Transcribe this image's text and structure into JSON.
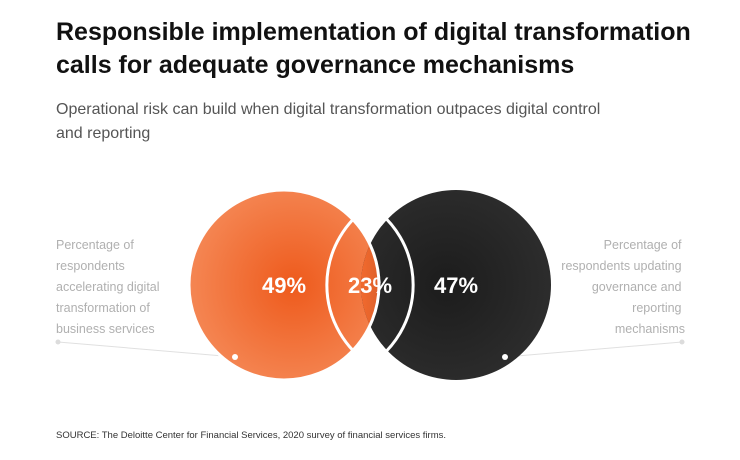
{
  "title": "Responsible implementation of digital transformation calls for adequate governance mechanisms",
  "subtitle": "Operational risk can build when digital transformation outpaces digital control and reporting",
  "source": "SOURCE: The Deloitte Center for Financial Services, 2020 survey of financial services firms.",
  "colors": {
    "left_circle": "#f26a2e",
    "right_circle": "#2a2a2a",
    "label_text": "#b0b0b0"
  },
  "chart_data": {
    "type": "venn",
    "sets": [
      {
        "label_lines": [
          "Percentage of",
          "respondents",
          "accelerating digital",
          "transformation of",
          "business services"
        ],
        "value_text": "49%",
        "value": 49
      },
      {
        "label_lines": [
          "Percentage of",
          "respondents updating",
          "governance and",
          "reporting",
          "mechanisms"
        ],
        "value_text": "47%",
        "value": 47
      }
    ],
    "intersection": {
      "value_text": "23%",
      "value": 23
    }
  }
}
